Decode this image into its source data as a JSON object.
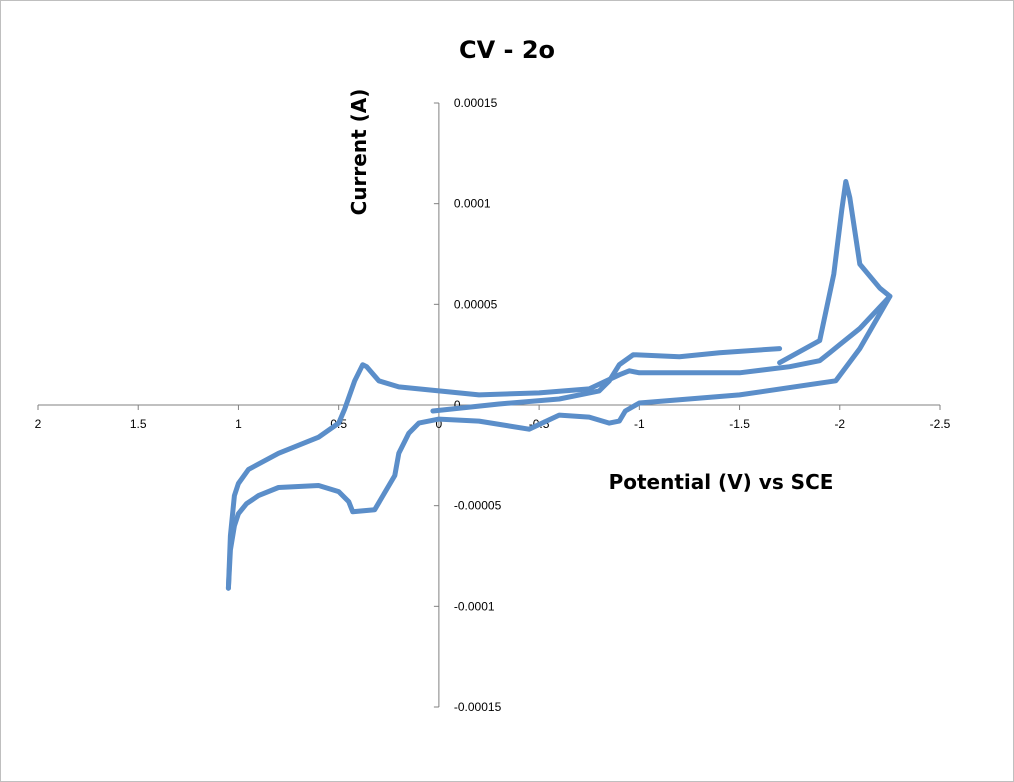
{
  "chart_data": {
    "type": "line",
    "title": "CV - 2o",
    "xlabel": "Potential (V) vs SCE",
    "ylabel": "Current (A)",
    "xlim": [
      2,
      -2.5
    ],
    "ylim": [
      -0.00015,
      0.00015
    ],
    "x_reversed": true,
    "x_ticks": [
      {
        "value": 2,
        "label": "2"
      },
      {
        "value": 1.5,
        "label": "1.5"
      },
      {
        "value": 1,
        "label": "1"
      },
      {
        "value": 0.5,
        "label": "0.5"
      },
      {
        "value": 0,
        "label": "0"
      },
      {
        "value": -0.5,
        "label": "-0.5"
      },
      {
        "value": -1,
        "label": "-1"
      },
      {
        "value": -1.5,
        "label": "-1.5"
      },
      {
        "value": -2,
        "label": "-2"
      },
      {
        "value": -2.5,
        "label": "-2.5"
      }
    ],
    "y_ticks": [
      {
        "value": 0.00015,
        "label": "0.00015"
      },
      {
        "value": 0.0001,
        "label": "0.0001"
      },
      {
        "value": 5e-05,
        "label": "0.00005"
      },
      {
        "value": 0,
        "label": "0"
      },
      {
        "value": -5e-05,
        "label": "-0.00005"
      },
      {
        "value": -0.0001,
        "label": "-0.0001"
      },
      {
        "value": -0.00015,
        "label": "-0.00015"
      }
    ],
    "grid": false,
    "legend": "none",
    "series_color": "#5b8ec9",
    "series": [
      {
        "x": [
          0.03,
          -0.3,
          -0.6,
          -0.8,
          -0.85,
          -0.9,
          -0.97,
          -1.2,
          -1.4,
          -1.7
        ],
        "y": [
          -3e-06,
          5e-07,
          3e-06,
          7e-06,
          1.2e-05,
          2e-05,
          2.5e-05,
          2.4e-05,
          2.6e-05,
          2.8e-05
        ]
      },
      {
        "x": [
          -1.7,
          -1.9,
          -1.97,
          -2.01,
          -2.03,
          -2.05,
          -2.1,
          -2.2,
          -2.25,
          -2.1,
          -1.98,
          -1.5,
          -1.0,
          -0.93,
          -0.9,
          -0.85,
          -0.75,
          -0.6,
          -0.45,
          -0.2,
          0.0,
          0.1,
          0.15,
          0.2,
          0.22,
          0.32,
          0.43,
          0.45,
          0.5,
          0.6,
          0.8,
          0.9,
          0.96,
          1.0,
          1.02,
          1.04,
          1.05
        ],
        "y": [
          2.1e-05,
          3.2e-05,
          6.5e-05,
          9.7e-05,
          0.000111,
          0.000103,
          7e-05,
          5.8e-05,
          5.4e-05,
          2.8e-05,
          1.2e-05,
          5e-06,
          1e-06,
          -3e-06,
          -8e-06,
          -9e-06,
          -6e-06,
          -5e-06,
          -1.2e-05,
          -8e-06,
          -7e-06,
          -9e-06,
          -1.4e-05,
          -2.4e-05,
          -3.5e-05,
          -5.2e-05,
          -5.3e-05,
          -4.8e-05,
          -4.3e-05,
          -4e-05,
          -4.1e-05,
          -4.5e-05,
          -4.9e-05,
          -5.4e-05,
          -6e-05,
          -7.2e-05,
          -9.1e-05
        ]
      },
      {
        "x": [
          1.05,
          1.04,
          1.02,
          1.0,
          0.95,
          0.8,
          0.6,
          0.5,
          0.47,
          0.42,
          0.38,
          0.36,
          0.3,
          0.2,
          0.0,
          -0.2,
          -0.5,
          -0.75,
          -0.9,
          -0.95,
          -1.0,
          -1.5,
          -1.75,
          -1.9,
          -1.95,
          -2.0,
          -2.1,
          -2.25
        ],
        "y": [
          -9.1e-05,
          -6.5e-05,
          -4.5e-05,
          -3.9e-05,
          -3.2e-05,
          -2.4e-05,
          -1.6e-05,
          -9e-06,
          -2e-06,
          1.2e-05,
          2e-05,
          1.9e-05,
          1.2e-05,
          9e-06,
          7e-06,
          5e-06,
          6e-06,
          8e-06,
          1.5e-05,
          1.7e-05,
          1.6e-05,
          1.6e-05,
          1.9e-05,
          2.2e-05,
          2.6e-05,
          3e-05,
          3.8e-05,
          5.4e-05
        ]
      }
    ]
  }
}
